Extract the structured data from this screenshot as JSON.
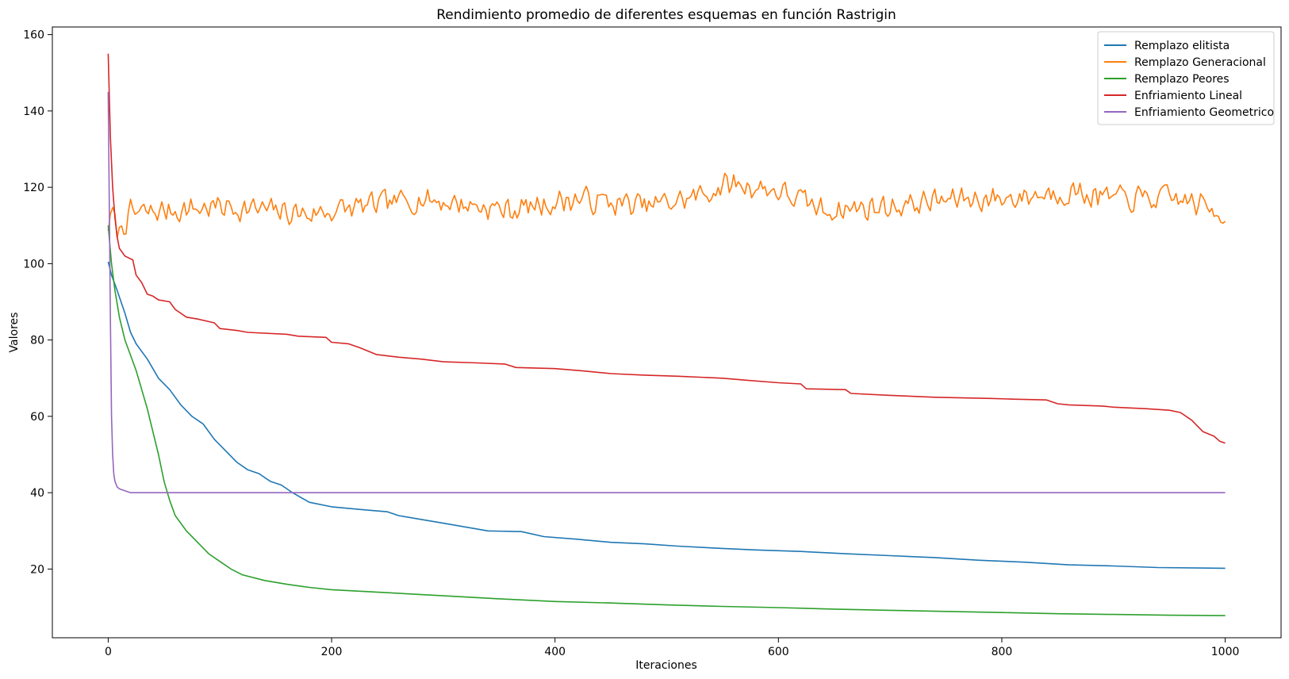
{
  "chart_data": {
    "type": "line",
    "title": "Rendimiento promedio de diferentes esquemas en función Rastrigin",
    "xlabel": "Iteraciones",
    "ylabel": "Valores",
    "xlim": [
      -50,
      1050
    ],
    "ylim": [
      2,
      162
    ],
    "xticks": [
      0,
      200,
      400,
      600,
      800,
      1000
    ],
    "yticks": [
      20,
      40,
      60,
      80,
      100,
      120,
      140,
      160
    ],
    "grid": false,
    "legend_position": "top-right",
    "series": [
      {
        "name": "Remplazo elitista",
        "color": "#1f77b4",
        "kind": "points",
        "points": [
          [
            0,
            100.5
          ],
          [
            3,
            97
          ],
          [
            8,
            93
          ],
          [
            15,
            87
          ],
          [
            20,
            82
          ],
          [
            25,
            79
          ],
          [
            35,
            75
          ],
          [
            45,
            70
          ],
          [
            55,
            67
          ],
          [
            65,
            63
          ],
          [
            75,
            60
          ],
          [
            85,
            58
          ],
          [
            95,
            54
          ],
          [
            105,
            51
          ],
          [
            115,
            48
          ],
          [
            125,
            46
          ],
          [
            135,
            45
          ],
          [
            145,
            43
          ],
          [
            155,
            42
          ],
          [
            165,
            40
          ],
          [
            180,
            37.5
          ],
          [
            200,
            36.3
          ],
          [
            230,
            35.5
          ],
          [
            250,
            35
          ],
          [
            260,
            34
          ],
          [
            280,
            33
          ],
          [
            300,
            32
          ],
          [
            320,
            31
          ],
          [
            340,
            30
          ],
          [
            370,
            29.8
          ],
          [
            390,
            28.5
          ],
          [
            420,
            27.8
          ],
          [
            450,
            27
          ],
          [
            480,
            26.6
          ],
          [
            510,
            26
          ],
          [
            550,
            25.4
          ],
          [
            580,
            25
          ],
          [
            620,
            24.6
          ],
          [
            660,
            24
          ],
          [
            700,
            23.5
          ],
          [
            740,
            23
          ],
          [
            780,
            22.3
          ],
          [
            820,
            21.8
          ],
          [
            860,
            21.1
          ],
          [
            900,
            20.8
          ],
          [
            940,
            20.4
          ],
          [
            1000,
            20.2
          ]
        ]
      },
      {
        "name": "Remplazo Generacional",
        "color": "#ff7f0e",
        "kind": "noisy",
        "points": [
          [
            0,
            110
          ],
          [
            4,
            113
          ],
          [
            8,
            108
          ],
          [
            20,
            113
          ],
          [
            100,
            115
          ],
          [
            180,
            113
          ],
          [
            280,
            117
          ],
          [
            360,
            114
          ],
          [
            420,
            117
          ],
          [
            480,
            115
          ],
          [
            520,
            117
          ],
          [
            560,
            121
          ],
          [
            600,
            119
          ],
          [
            640,
            114
          ],
          [
            700,
            115
          ],
          [
            760,
            117
          ],
          [
            800,
            117
          ],
          [
            860,
            119
          ],
          [
            900,
            117
          ],
          [
            960,
            117
          ],
          [
            1000,
            113
          ]
        ],
        "noise_amplitude": 3,
        "noise_seed": 7
      },
      {
        "name": "Remplazo Peores",
        "color": "#2ca02c",
        "kind": "points",
        "points": [
          [
            0,
            110
          ],
          [
            3,
            100
          ],
          [
            6,
            93
          ],
          [
            10,
            86
          ],
          [
            15,
            80
          ],
          [
            20,
            76
          ],
          [
            25,
            72
          ],
          [
            30,
            67
          ],
          [
            35,
            62
          ],
          [
            40,
            56
          ],
          [
            45,
            50
          ],
          [
            50,
            43
          ],
          [
            55,
            38
          ],
          [
            60,
            34
          ],
          [
            70,
            30
          ],
          [
            80,
            27
          ],
          [
            90,
            24
          ],
          [
            100,
            22
          ],
          [
            110,
            20
          ],
          [
            120,
            18.5
          ],
          [
            140,
            17
          ],
          [
            160,
            16
          ],
          [
            180,
            15.2
          ],
          [
            200,
            14.6
          ],
          [
            250,
            13.8
          ],
          [
            300,
            13
          ],
          [
            350,
            12.2
          ],
          [
            400,
            11.5
          ],
          [
            450,
            11.1
          ],
          [
            500,
            10.6
          ],
          [
            550,
            10.2
          ],
          [
            600,
            9.9
          ],
          [
            650,
            9.5
          ],
          [
            700,
            9.2
          ],
          [
            750,
            8.9
          ],
          [
            800,
            8.6
          ],
          [
            850,
            8.3
          ],
          [
            900,
            8.1
          ],
          [
            950,
            7.9
          ],
          [
            1000,
            7.8
          ]
        ]
      },
      {
        "name": "Enfriamiento Lineal",
        "color": "#d62728",
        "kind": "points",
        "points": [
          [
            0,
            155
          ],
          [
            2,
            133
          ],
          [
            4,
            120
          ],
          [
            6,
            112
          ],
          [
            8,
            107
          ],
          [
            10,
            104
          ],
          [
            15,
            102
          ],
          [
            22,
            101
          ],
          [
            25,
            97
          ],
          [
            30,
            95
          ],
          [
            35,
            92
          ],
          [
            40,
            91.5
          ],
          [
            45,
            90.5
          ],
          [
            55,
            90
          ],
          [
            60,
            88
          ],
          [
            70,
            86
          ],
          [
            80,
            85.5
          ],
          [
            95,
            84.5
          ],
          [
            100,
            83
          ],
          [
            115,
            82.5
          ],
          [
            125,
            82
          ],
          [
            160,
            81.5
          ],
          [
            170,
            81
          ],
          [
            195,
            80.7
          ],
          [
            200,
            79.4
          ],
          [
            215,
            79
          ],
          [
            225,
            78
          ],
          [
            240,
            76.2
          ],
          [
            260,
            75.5
          ],
          [
            280,
            75
          ],
          [
            300,
            74.3
          ],
          [
            330,
            74
          ],
          [
            355,
            73.7
          ],
          [
            365,
            72.8
          ],
          [
            400,
            72.5
          ],
          [
            425,
            71.9
          ],
          [
            450,
            71.2
          ],
          [
            480,
            70.8
          ],
          [
            510,
            70.5
          ],
          [
            550,
            70
          ],
          [
            570,
            69.5
          ],
          [
            600,
            68.8
          ],
          [
            620,
            68.5
          ],
          [
            625,
            67.2
          ],
          [
            660,
            67
          ],
          [
            665,
            66
          ],
          [
            700,
            65.5
          ],
          [
            740,
            65
          ],
          [
            790,
            64.7
          ],
          [
            810,
            64.5
          ],
          [
            840,
            64.3
          ],
          [
            850,
            63.3
          ],
          [
            860,
            63
          ],
          [
            890,
            62.7
          ],
          [
            900,
            62.4
          ],
          [
            930,
            62
          ],
          [
            950,
            61.6
          ],
          [
            960,
            61
          ],
          [
            970,
            59
          ],
          [
            980,
            56
          ],
          [
            990,
            54.8
          ],
          [
            995,
            53.5
          ],
          [
            1000,
            53
          ]
        ]
      },
      {
        "name": "Enfriamiento Geometrico",
        "color": "#9467bd",
        "kind": "points",
        "points": [
          [
            0,
            145
          ],
          [
            1,
            115
          ],
          [
            2,
            85
          ],
          [
            3,
            60
          ],
          [
            4,
            50
          ],
          [
            5,
            45
          ],
          [
            6,
            43
          ],
          [
            8,
            41.5
          ],
          [
            10,
            41
          ],
          [
            15,
            40.5
          ],
          [
            20,
            40
          ],
          [
            1000,
            40
          ]
        ]
      }
    ]
  }
}
